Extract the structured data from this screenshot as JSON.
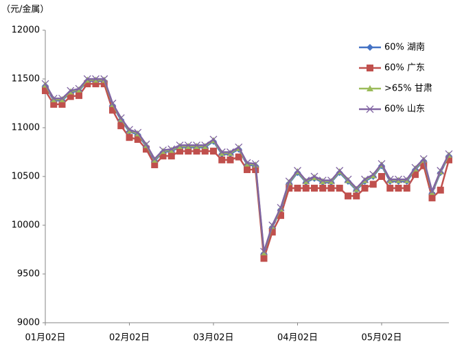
{
  "chart_data": {
    "type": "line",
    "title": "（元/金属）",
    "categories": [
      "01月02日",
      null,
      null,
      null,
      null,
      null,
      null,
      null,
      null,
      null,
      "02月02日",
      null,
      null,
      null,
      null,
      null,
      null,
      null,
      null,
      null,
      "03月02日",
      null,
      null,
      null,
      null,
      null,
      null,
      null,
      null,
      null,
      "04月02日",
      null,
      null,
      null,
      null,
      null,
      null,
      null,
      null,
      null,
      "05月02日",
      null,
      null,
      null,
      null,
      null,
      null,
      null,
      null
    ],
    "series": [
      {
        "name": "60% 湖南",
        "color": "#4472c4",
        "marker": "diamond",
        "values": [
          11430,
          11280,
          11280,
          11360,
          11380,
          11480,
          11480,
          11480,
          11230,
          11080,
          10960,
          10930,
          10810,
          10660,
          10750,
          10760,
          10800,
          10800,
          10800,
          10800,
          10860,
          10730,
          10730,
          10780,
          10620,
          10610,
          9710,
          9980,
          10160,
          10430,
          10540,
          10440,
          10480,
          10440,
          10440,
          10540,
          10450,
          10360,
          10450,
          10500,
          10610,
          10450,
          10450,
          10450,
          10570,
          10660,
          10330,
          10540,
          10710
        ]
      },
      {
        "name": "60% 广东",
        "color": "#c0504d",
        "marker": "square",
        "values": [
          11380,
          11240,
          11240,
          11320,
          11330,
          11450,
          11450,
          11450,
          11180,
          11020,
          10900,
          10880,
          10780,
          10620,
          10710,
          10710,
          10760,
          10760,
          10760,
          10760,
          10760,
          10670,
          10670,
          10700,
          10570,
          10570,
          9660,
          9930,
          10100,
          10380,
          10380,
          10380,
          10380,
          10380,
          10380,
          10380,
          10300,
          10300,
          10380,
          10420,
          10500,
          10380,
          10380,
          10380,
          10520,
          10610,
          10280,
          10360,
          10670
        ]
      },
      {
        "name": ">65% 甘肃",
        "color": "#9bbb59",
        "marker": "triangle",
        "values": [
          11440,
          11290,
          11290,
          11370,
          11390,
          11490,
          11490,
          11490,
          11240,
          11090,
          10970,
          10940,
          10820,
          10670,
          10760,
          10770,
          10810,
          10810,
          10810,
          10810,
          10870,
          10740,
          10740,
          10790,
          10630,
          10620,
          9720,
          9990,
          10170,
          10440,
          10550,
          10450,
          10490,
          10450,
          10450,
          10550,
          10460,
          10370,
          10460,
          10510,
          10620,
          10460,
          10460,
          10460,
          10580,
          10670,
          10340,
          10550,
          10720
        ]
      },
      {
        "name": "60% 山东",
        "color": "#8064a2",
        "marker": "x",
        "values": [
          11450,
          11300,
          11300,
          11380,
          11400,
          11500,
          11500,
          11500,
          11250,
          11100,
          10980,
          10950,
          10830,
          10680,
          10770,
          10780,
          10820,
          10820,
          10820,
          10820,
          10880,
          10750,
          10750,
          10800,
          10640,
          10630,
          9730,
          10000,
          10180,
          10450,
          10560,
          10460,
          10500,
          10460,
          10460,
          10560,
          10470,
          10380,
          10470,
          10520,
          10630,
          10470,
          10470,
          10470,
          10590,
          10680,
          10350,
          10560,
          10730
        ]
      }
    ],
    "ylim": [
      9000,
      12000
    ],
    "yticks": [
      9000,
      9500,
      10000,
      10500,
      11000,
      11500,
      12000
    ],
    "grid": false,
    "legend": "upper right"
  }
}
